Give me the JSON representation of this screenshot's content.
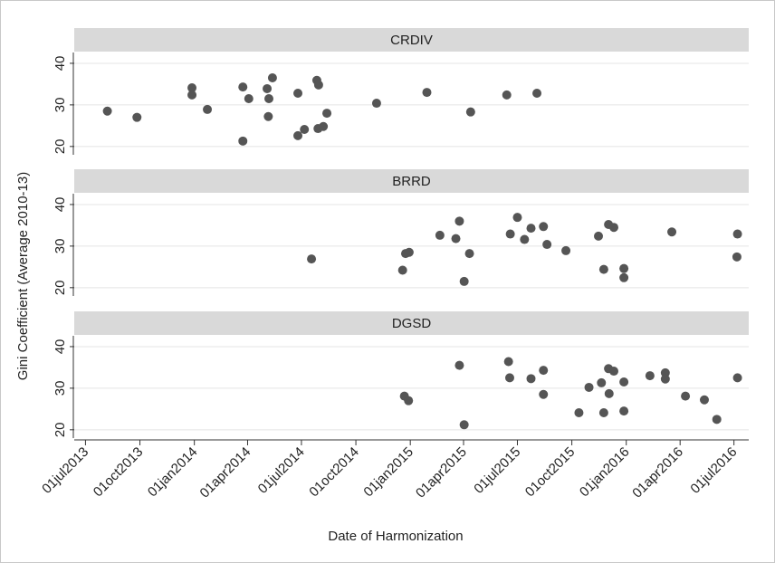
{
  "chart_data": {
    "type": "scatter",
    "ylabel": "Gini Coefficient (Average 2010-13)",
    "xlabel": "Date of Harmonization",
    "color": "#555555",
    "grid": true,
    "xlim": [
      "2013-06-12",
      "2016-07-26"
    ],
    "xticks": [
      {
        "value": "2013-07-01",
        "label": "01jul2013"
      },
      {
        "value": "2013-10-01",
        "label": "01oct2013"
      },
      {
        "value": "2014-01-01",
        "label": "01jan2014"
      },
      {
        "value": "2014-04-01",
        "label": "01apr2014"
      },
      {
        "value": "2014-07-01",
        "label": "01jul2014"
      },
      {
        "value": "2014-10-01",
        "label": "01oct2014"
      },
      {
        "value": "2015-01-01",
        "label": "01jan2015"
      },
      {
        "value": "2015-04-01",
        "label": "01apr2015"
      },
      {
        "value": "2015-07-01",
        "label": "01jul2015"
      },
      {
        "value": "2015-10-01",
        "label": "01oct2015"
      },
      {
        "value": "2016-01-01",
        "label": "01jan2016"
      },
      {
        "value": "2016-04-01",
        "label": "01apr2016"
      },
      {
        "value": "2016-07-01",
        "label": "01jul2016"
      }
    ],
    "ylim": [
      18,
      42.6
    ],
    "yticks": [
      20,
      30,
      40
    ],
    "panels": [
      {
        "title": "CRDIV",
        "x": [
          "2013-08-07",
          "2013-09-26",
          "2013-12-28",
          "2013-12-28",
          "2014-01-23",
          "2014-03-24",
          "2014-03-24",
          "2014-04-03",
          "2014-05-04",
          "2014-05-07",
          "2014-05-06",
          "2014-05-13",
          "2014-06-25",
          "2014-06-25",
          "2014-07-06",
          "2014-07-27",
          "2014-07-30",
          "2014-07-29",
          "2014-08-07",
          "2014-08-13",
          "2014-11-05",
          "2015-01-29",
          "2015-04-13",
          "2015-06-13",
          "2015-08-03"
        ],
        "y": [
          28.5,
          27.0,
          34.1,
          32.4,
          28.9,
          34.3,
          21.3,
          31.5,
          33.9,
          31.5,
          27.2,
          36.5,
          32.8,
          22.6,
          24.1,
          35.9,
          34.8,
          24.3,
          24.8,
          28.0,
          30.4,
          33.0,
          28.3,
          32.4,
          32.8
        ]
      },
      {
        "title": "BRRD",
        "x": [
          "2014-07-18",
          "2014-12-19",
          "2014-12-24",
          "2014-12-30",
          "2015-02-20",
          "2015-03-19",
          "2015-03-25",
          "2015-04-02",
          "2015-04-11",
          "2015-06-19",
          "2015-07-01",
          "2015-07-13",
          "2015-07-24",
          "2015-08-14",
          "2015-08-20",
          "2015-09-21",
          "2015-11-15",
          "2015-11-24",
          "2015-12-02",
          "2015-12-11",
          "2015-12-28",
          "2015-12-28",
          "2016-03-18",
          "2016-07-07",
          "2016-07-06"
        ],
        "y": [
          26.9,
          24.2,
          28.2,
          28.5,
          32.6,
          31.8,
          36.0,
          21.5,
          28.2,
          32.9,
          36.9,
          31.6,
          34.3,
          34.7,
          30.4,
          28.9,
          32.4,
          24.4,
          35.2,
          34.5,
          24.6,
          22.4,
          33.4,
          32.9,
          27.4
        ]
      },
      {
        "title": "DGSD",
        "x": [
          "2014-12-22",
          "2014-12-29",
          "2015-03-25",
          "2015-04-02",
          "2015-06-16",
          "2015-06-18",
          "2015-07-24",
          "2015-08-14",
          "2015-08-14",
          "2015-10-13",
          "2015-10-30",
          "2015-11-20",
          "2015-11-24",
          "2015-12-02",
          "2015-12-03",
          "2015-12-11",
          "2015-12-28",
          "2015-12-28",
          "2016-02-10",
          "2016-03-07",
          "2016-03-07",
          "2016-04-10",
          "2016-05-12",
          "2016-06-02",
          "2016-07-07"
        ],
        "y": [
          28.1,
          27.0,
          35.5,
          21.2,
          36.4,
          32.5,
          32.3,
          34.3,
          28.5,
          24.1,
          30.2,
          31.3,
          24.1,
          34.7,
          28.7,
          34.1,
          31.5,
          24.5,
          33.0,
          33.7,
          32.2,
          28.1,
          27.2,
          22.5,
          32.5
        ]
      }
    ]
  }
}
